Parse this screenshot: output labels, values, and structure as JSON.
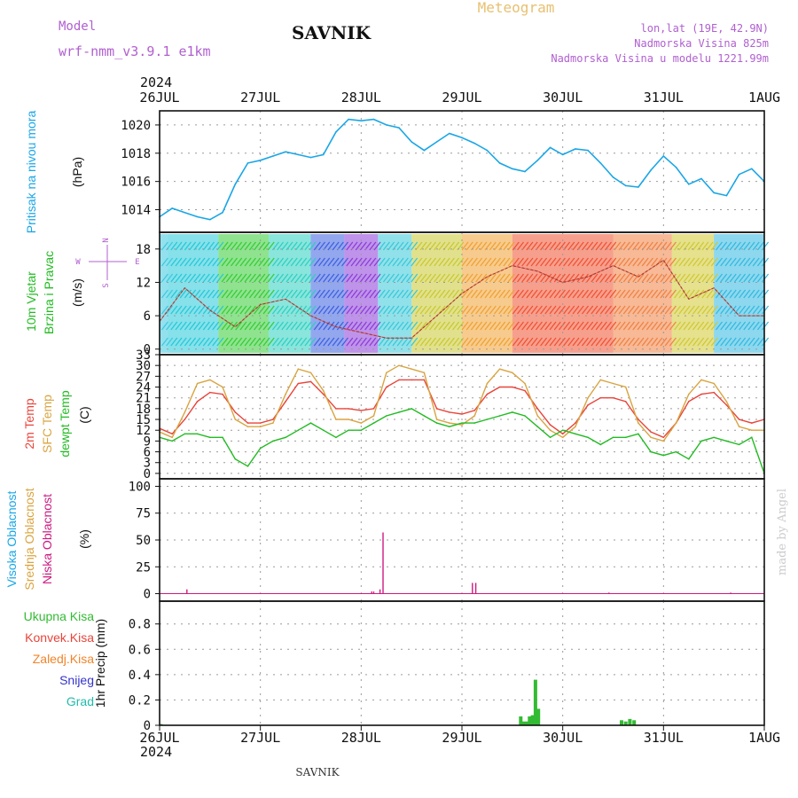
{
  "header": {
    "model_label": "Model",
    "model_name": "wrf-nmm_v3.9.1 e1km",
    "station": "SAVNIK",
    "product": "Meteogram",
    "lonlat": "lon,lat (19E, 42.9N)",
    "elevation": "Nadmorska Visina 825m",
    "model_elevation": "Nadmorska Visina u modelu 1221.99m",
    "footer_station": "SAVNIK",
    "credit": "made by Angel",
    "year": "2024"
  },
  "colors": {
    "pressure": "#1aa6e6",
    "wind_label": "#22bb22",
    "t2m": "#e8443a",
    "sfc": "#d9a441",
    "dewpt": "#22bb22",
    "cloud_high": "#1aa6e6",
    "cloud_mid": "#d9a441",
    "cloud_low": "#cc1a80",
    "precip_total": "#33bb33",
    "precip_conv": "#e8443a",
    "precip_frz": "#f0842a",
    "precip_snow": "#3333cc",
    "precip_grad": "#22bbaa",
    "header_purple": "#b060d0",
    "header_gold": "#e8c070"
  },
  "xaxis": {
    "ticks": [
      "26JUL",
      "27JUL",
      "28JUL",
      "29JUL",
      "30JUL",
      "31JUL",
      "1AUG"
    ]
  },
  "chart_data": [
    {
      "type": "line",
      "id": "pressure",
      "title": "Pritisak na nivou mora",
      "ylabel": "(hPa)",
      "yticks": [
        "1014",
        "1016",
        "1018",
        "1020"
      ],
      "ylim": [
        1012.4,
        1021.0
      ],
      "x_hours": [
        0,
        3,
        6,
        9,
        12,
        15,
        18,
        21,
        24,
        27,
        30,
        33,
        36,
        39,
        42,
        45,
        48,
        51,
        54,
        57,
        60,
        63,
        66,
        69,
        72,
        75,
        78,
        81,
        84,
        87,
        90,
        93,
        96,
        99,
        102,
        105,
        108,
        111,
        114,
        117,
        120,
        123,
        126,
        129,
        132,
        135,
        138,
        141,
        144
      ],
      "values": [
        1013.5,
        1014.1,
        1013.8,
        1013.5,
        1013.3,
        1013.8,
        1015.8,
        1017.3,
        1017.5,
        1017.8,
        1018.1,
        1017.9,
        1017.7,
        1017.9,
        1019.5,
        1020.4,
        1020.3,
        1020.4,
        1020.0,
        1019.8,
        1018.8,
        1018.2,
        1018.8,
        1019.4,
        1019.1,
        1018.7,
        1018.2,
        1017.3,
        1016.9,
        1016.7,
        1017.5,
        1018.4,
        1017.9,
        1018.3,
        1018.2,
        1017.3,
        1016.3,
        1015.7,
        1015.6,
        1016.8,
        1017.8,
        1017.0,
        1015.8,
        1016.2,
        1015.2,
        1015.0,
        1016.5,
        1016.9,
        1016.0
      ]
    },
    {
      "type": "line",
      "id": "wind",
      "title": "10m Vjetar Brzina i Pravac",
      "ylabel": "(m/s)",
      "yticks": [
        "0",
        "6",
        "12",
        "18"
      ],
      "ylim": [
        -1,
        21
      ],
      "compass": {
        "n": "N",
        "w": "W",
        "e": "E",
        "s": "S"
      },
      "x_hours": [
        0,
        6,
        12,
        18,
        24,
        30,
        36,
        42,
        48,
        54,
        60,
        66,
        72,
        78,
        84,
        90,
        96,
        102,
        108,
        114,
        120,
        126,
        132,
        138,
        144
      ],
      "values": [
        5,
        11,
        7,
        4,
        8,
        9,
        6,
        4,
        3,
        2,
        2,
        6,
        10,
        13,
        15,
        14,
        12,
        13,
        15,
        13,
        16,
        9,
        11,
        6,
        6
      ]
    },
    {
      "type": "line",
      "id": "temperature",
      "ylabel": "(C)",
      "yticks": [
        "0",
        "3",
        "6",
        "9",
        "12",
        "15",
        "18",
        "21",
        "24",
        "27",
        "30",
        "33"
      ],
      "ylim": [
        -1.5,
        33
      ],
      "x_hours": [
        0,
        3,
        6,
        9,
        12,
        15,
        18,
        21,
        24,
        27,
        30,
        33,
        36,
        39,
        42,
        45,
        48,
        51,
        54,
        57,
        60,
        63,
        66,
        69,
        72,
        75,
        78,
        81,
        84,
        87,
        90,
        93,
        96,
        99,
        102,
        105,
        108,
        111,
        114,
        117,
        120,
        123,
        126,
        129,
        132,
        135,
        138,
        141,
        144
      ],
      "series": [
        {
          "name": "2m Temp",
          "color_key": "t2m",
          "values": [
            12.5,
            11,
            15,
            20,
            22.5,
            22,
            17,
            14,
            14,
            15,
            20,
            25,
            25.5,
            22,
            18,
            18,
            17.5,
            18,
            24,
            26,
            26,
            26,
            18,
            17,
            16.5,
            17.5,
            22,
            24,
            24,
            23,
            18,
            13.5,
            11,
            14,
            19,
            21,
            21,
            20,
            15,
            11.5,
            10,
            14,
            20,
            22,
            22.5,
            19,
            15,
            14,
            15
          ]
        },
        {
          "name": "SFC Temp",
          "color_key": "sfc",
          "values": [
            11.5,
            10,
            17,
            25,
            26,
            24,
            15,
            13,
            13,
            14,
            22,
            29,
            28,
            23,
            15,
            15,
            14,
            16,
            28,
            30,
            29,
            28,
            15,
            14,
            13.5,
            16,
            25,
            29,
            28,
            25,
            16,
            12,
            10,
            13,
            21,
            26,
            25,
            24,
            14,
            10,
            9,
            14,
            22,
            26,
            25,
            20,
            13,
            12,
            12
          ]
        },
        {
          "name": "dewpt Temp",
          "color_key": "dewpt",
          "values": [
            10,
            9,
            11,
            11,
            10,
            10,
            4,
            2,
            7,
            9,
            10,
            12,
            14,
            12,
            10,
            12,
            12,
            14,
            16,
            17,
            18,
            16,
            14,
            13,
            14,
            14,
            15,
            16,
            17,
            16,
            13,
            10,
            12,
            11,
            10,
            8,
            10,
            10,
            11,
            6,
            5,
            6,
            4,
            9,
            10,
            9,
            8,
            10,
            0
          ]
        }
      ]
    },
    {
      "type": "bar",
      "id": "cloud",
      "ylabel": "(%)",
      "yticks": [
        "0",
        "25",
        "50",
        "75",
        "100"
      ],
      "ylim": [
        -7,
        107
      ],
      "series_labels": [
        "Visoka Oblacnost",
        "Srednja Oblacnost",
        "Niska Oblacnost"
      ],
      "bars": [
        {
          "hour": 6.5,
          "value": 4,
          "color_key": "cloud_low"
        },
        {
          "hour": 50.5,
          "value": 2,
          "color_key": "cloud_low"
        },
        {
          "hour": 51.0,
          "value": 2,
          "color_key": "cloud_low"
        },
        {
          "hour": 52.5,
          "value": 4,
          "color_key": "cloud_low"
        },
        {
          "hour": 53.2,
          "value": 57,
          "color_key": "cloud_low"
        },
        {
          "hour": 74.5,
          "value": 10,
          "color_key": "cloud_low"
        },
        {
          "hour": 75.3,
          "value": 10,
          "color_key": "cloud_low"
        },
        {
          "hour": 107.0,
          "value": 1,
          "color_key": "cloud_low"
        },
        {
          "hour": 136.0,
          "value": 1,
          "color_key": "cloud_low"
        }
      ]
    },
    {
      "type": "bar",
      "id": "precip",
      "ylabel": "1hr Precip (mm)",
      "yticks": [
        "0",
        "0.2",
        "0.4",
        "0.6",
        "0.8"
      ],
      "ylim": [
        0,
        0.98
      ],
      "series_labels": [
        "Ukupna Kisa",
        "Konvek.Kisa",
        "Zaledj.Kisa",
        "Snijeg",
        "Grad"
      ],
      "bars": [
        {
          "hour": 0.3,
          "value": 0.01
        },
        {
          "hour": 86.0,
          "value": 0.07
        },
        {
          "hour": 86.7,
          "value": 0.03
        },
        {
          "hour": 87.4,
          "value": 0.03
        },
        {
          "hour": 88.1,
          "value": 0.07
        },
        {
          "hour": 88.8,
          "value": 0.08
        },
        {
          "hour": 89.5,
          "value": 0.36
        },
        {
          "hour": 90.2,
          "value": 0.13
        },
        {
          "hour": 110.0,
          "value": 0.04
        },
        {
          "hour": 111.0,
          "value": 0.03
        },
        {
          "hour": 112.0,
          "value": 0.05
        },
        {
          "hour": 113.0,
          "value": 0.04
        }
      ]
    }
  ]
}
